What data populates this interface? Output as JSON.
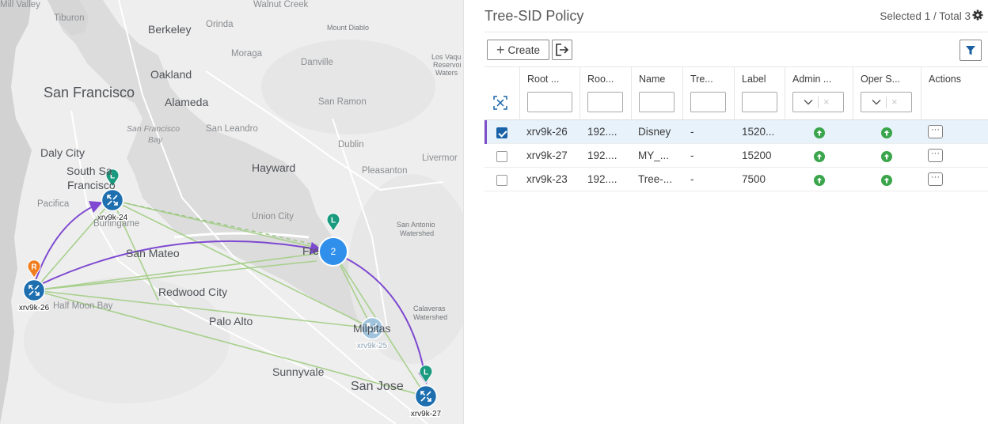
{
  "map": {
    "labels": [
      {
        "text": "Mill Valley",
        "cls": "sm"
      },
      {
        "text": "Tiburon",
        "cls": "sm"
      },
      {
        "text": "Walnut Creek",
        "cls": "sm"
      },
      {
        "text": "Berkeley",
        "cls": "md"
      },
      {
        "text": "Orinda",
        "cls": "sm"
      },
      {
        "text": "Mount Diablo",
        "cls": "xs"
      },
      {
        "text": "Moraga",
        "cls": "sm"
      },
      {
        "text": "Danville",
        "cls": "sm"
      },
      {
        "text": "Los Vaqu",
        "cls": "xs"
      },
      {
        "text": "Reservoi",
        "cls": "xs"
      },
      {
        "text": "Waters",
        "cls": "xs"
      },
      {
        "text": "Oakland",
        "cls": "md"
      },
      {
        "text": "San Francisco",
        "cls": "lg"
      },
      {
        "text": "Alameda",
        "cls": "md"
      },
      {
        "text": "San Ramon",
        "cls": "sm"
      },
      {
        "text": "San Francisco",
        "cls": "it"
      },
      {
        "text": "Bay",
        "cls": "it"
      },
      {
        "text": "San Leandro",
        "cls": "sm"
      },
      {
        "text": "Daly City",
        "cls": "md"
      },
      {
        "text": "Dublin",
        "cls": "sm"
      },
      {
        "text": "Livermor",
        "cls": "sm"
      },
      {
        "text": "South Sa",
        "cls": "md"
      },
      {
        "text": "Francisco",
        "cls": "md"
      },
      {
        "text": "Hayward",
        "cls": "md"
      },
      {
        "text": "Pleasanton",
        "cls": "sm"
      },
      {
        "text": "Pacifica",
        "cls": "sm"
      },
      {
        "text": "Burlingame",
        "cls": "sm"
      },
      {
        "text": "Union City",
        "cls": "sm"
      },
      {
        "text": "San Antonio",
        "cls": "xs"
      },
      {
        "text": "Watershed",
        "cls": "xs"
      },
      {
        "text": "San Mateo",
        "cls": "md"
      },
      {
        "text": "Fre",
        "cls": "md"
      },
      {
        "text": "Redwood City",
        "cls": "md"
      },
      {
        "text": "Half Moon Bay",
        "cls": "sm"
      },
      {
        "text": "Calaveras",
        "cls": "xs"
      },
      {
        "text": "Watershed",
        "cls": "xs"
      },
      {
        "text": "Palo Alto",
        "cls": "md"
      },
      {
        "text": "Milpitas",
        "cls": "md"
      },
      {
        "text": "Sunnyvale",
        "cls": "md"
      },
      {
        "text": "San Jose",
        "cls": "lg2"
      }
    ],
    "nodes": [
      {
        "name": "xrv9k-24",
        "color": "#1e6fb0"
      },
      {
        "name": "xrv9k-26",
        "color": "#1e6fb0"
      },
      {
        "name": "xrv9k-25",
        "color": "#9fc3dc"
      },
      {
        "name": "xrv9k-27",
        "color": "#1e6fb0"
      }
    ],
    "cluster": {
      "count": "2",
      "color": "#2f8fea"
    },
    "pins": [
      {
        "letter": "L",
        "color": "#1a9a7e"
      },
      {
        "letter": "L",
        "color": "#1a9a7e"
      },
      {
        "letter": "R",
        "color": "#f07d1d"
      },
      {
        "letter": "L",
        "color": "#1a9a7e"
      }
    ],
    "path_color": "#7e49d0",
    "link_color": "#a8d08d"
  },
  "panel": {
    "title": "Tree-SID Policy",
    "count": "Selected 1 / Total 3",
    "create_label": "Create",
    "columns": [
      "Root ...",
      "Roo...",
      "Name",
      "Tre...",
      "Label",
      "Admin ...",
      "Oper S...",
      "Actions"
    ],
    "rows": [
      {
        "root_node": "xrv9k-26",
        "root_ip": "192....",
        "name": "Disney",
        "tree": "-",
        "label": "1520...",
        "admin": "up",
        "oper": "up",
        "selected": true
      },
      {
        "root_node": "xrv9k-27",
        "root_ip": "192....",
        "name": "MY_...",
        "tree": "-",
        "label": "15200",
        "admin": "up",
        "oper": "up",
        "selected": false
      },
      {
        "root_node": "xrv9k-23",
        "root_ip": "192....",
        "name": "Tree-...",
        "tree": "-",
        "label": "7500",
        "admin": "up",
        "oper": "up",
        "selected": false
      }
    ],
    "actions_glyph": "···",
    "clear_glyph": "×"
  }
}
